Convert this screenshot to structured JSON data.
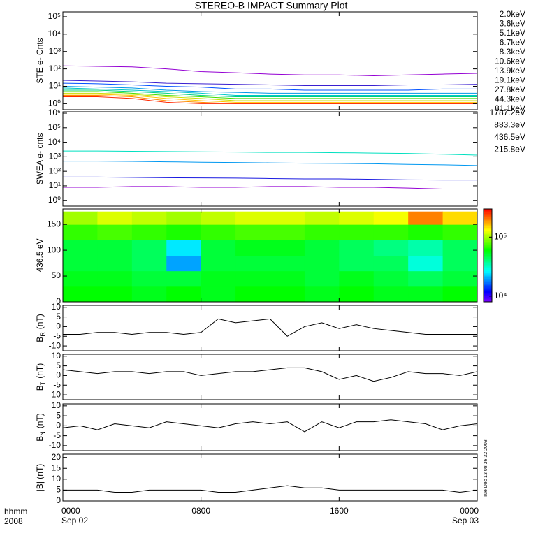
{
  "title": "STEREO-B IMPACT Summary Plot",
  "annotation": "Tue Dec 13 08:36:32 2008",
  "x_axis": {
    "label": "hhmm",
    "year": "2008",
    "xlim": [
      0,
      24
    ],
    "xticks": [
      {
        "value": 0,
        "label": "0000"
      },
      {
        "value": 8,
        "label": "0800"
      },
      {
        "value": 16,
        "label": "1600"
      },
      {
        "value": 24,
        "label": "0000"
      }
    ],
    "dates": [
      {
        "value": 0,
        "label": "Sep 02"
      },
      {
        "value": 24,
        "label": "Sep 03"
      }
    ]
  },
  "chart_data": [
    {
      "type": "line",
      "ylabel": "STE e- Cnts",
      "log_scale": true,
      "ylim": [
        0.45,
        190000
      ],
      "yticks": [
        {
          "value": 1,
          "label": "10⁰"
        },
        {
          "value": 10,
          "label": "10¹"
        },
        {
          "value": 100,
          "label": "10²"
        },
        {
          "value": 1000,
          "label": "10³"
        },
        {
          "value": 10000,
          "label": "10⁴"
        },
        {
          "value": 100000,
          "label": "10⁵"
        }
      ],
      "x": [
        0,
        2,
        4,
        6,
        8,
        10,
        12,
        14,
        16,
        18,
        20,
        22,
        24
      ],
      "series": [
        {
          "name": "2.0keV",
          "color": "#9400d3",
          "values": [
            150,
            140,
            130,
            100,
            70,
            60,
            50,
            45,
            45,
            40,
            45,
            50,
            55
          ]
        },
        {
          "name": "3.6keV",
          "color": "#3a1fd0",
          "values": [
            22,
            20,
            18,
            15,
            14,
            13,
            12,
            11,
            11,
            11,
            12,
            12,
            13
          ]
        },
        {
          "name": "5.1keV",
          "color": "#0050ff",
          "values": [
            15,
            14,
            12,
            10,
            9,
            7,
            7,
            6,
            6,
            6,
            6,
            7,
            7
          ]
        },
        {
          "name": "6.7keV",
          "color": "#0098e8",
          "values": [
            10,
            9,
            8,
            6,
            5,
            4.5,
            4,
            4,
            4,
            4,
            4,
            4,
            4
          ]
        },
        {
          "name": "8.3keV",
          "color": "#00c8c8",
          "values": [
            8,
            7,
            6,
            5,
            4,
            3,
            3,
            3,
            3,
            3,
            3,
            3,
            3
          ]
        },
        {
          "name": "10.6keV",
          "color": "#00d080",
          "values": [
            6,
            6,
            5,
            4,
            3,
            2.5,
            2.5,
            2.5,
            2.5,
            2.5,
            2.5,
            2.5,
            2.5
          ]
        },
        {
          "name": "13.9keV",
          "color": "#40e000",
          "values": [
            5,
            5,
            4,
            3,
            2.5,
            2,
            2,
            2,
            2,
            2,
            2,
            2,
            2
          ]
        },
        {
          "name": "19.1keV",
          "color": "#c8e000",
          "values": [
            4,
            4,
            3.5,
            2.5,
            2,
            1.5,
            1.5,
            1.5,
            1.5,
            1.5,
            1.5,
            1.5,
            1.5
          ]
        },
        {
          "name": "27.8keV",
          "color": "#ffc800",
          "values": [
            3.5,
            3.5,
            3,
            2,
            1.5,
            1.2,
            1.2,
            1.2,
            1.2,
            1.2,
            1.2,
            1.2,
            1.2
          ]
        },
        {
          "name": "44.3keV",
          "color": "#ff8c00",
          "values": [
            3,
            3,
            2.5,
            1.5,
            1.2,
            1,
            1,
            1,
            1,
            1,
            1,
            1,
            1
          ]
        },
        {
          "name": "81.1keV",
          "color": "#ff2800",
          "values": [
            2.5,
            2.5,
            2,
            1.2,
            1,
            1,
            1,
            1,
            1,
            1,
            1,
            1,
            1
          ]
        }
      ]
    },
    {
      "type": "line",
      "ylabel": "SWEA e- cnts",
      "log_scale": true,
      "ylim": [
        0.4,
        1250000
      ],
      "yticks": [
        {
          "value": 1,
          "label": "10⁰"
        },
        {
          "value": 10,
          "label": "10¹"
        },
        {
          "value": 100,
          "label": "10²"
        },
        {
          "value": 1000,
          "label": "10³"
        },
        {
          "value": 10000,
          "label": "10⁴"
        },
        {
          "value": 100000,
          "label": "10⁵"
        },
        {
          "value": 1000000,
          "label": "10⁶"
        }
      ],
      "x": [
        0,
        2,
        4,
        6,
        8,
        10,
        12,
        14,
        16,
        18,
        20,
        22,
        24
      ],
      "series": [
        {
          "name": "1787.2eV",
          "color": "#9400d3",
          "values": [
            8,
            8,
            9,
            9,
            8,
            8,
            9,
            9,
            8,
            8,
            7,
            6,
            6
          ]
        },
        {
          "name": "883.3eV",
          "color": "#1a1ae0",
          "values": [
            40,
            40,
            38,
            36,
            35,
            34,
            32,
            30,
            30,
            28,
            26,
            25,
            25
          ]
        },
        {
          "name": "436.5eV",
          "color": "#0098f0",
          "values": [
            500,
            500,
            480,
            450,
            420,
            400,
            380,
            360,
            350,
            330,
            300,
            280,
            250
          ]
        },
        {
          "name": "215.8eV",
          "color": "#00e0c0",
          "values": [
            2500,
            2500,
            2400,
            2300,
            2200,
            2100,
            2000,
            2000,
            1900,
            1800,
            1700,
            1500,
            1300
          ]
        }
      ]
    },
    {
      "type": "heatmap",
      "ylabel": "436.5 eV",
      "ylim": [
        0,
        180
      ],
      "yticks": [
        0,
        50,
        100,
        150
      ],
      "colormap": "rainbow",
      "zlog": true,
      "zlim": [
        8000,
        300000
      ],
      "zticks": [
        {
          "value": 10000,
          "label": "10⁴"
        },
        {
          "value": 100000,
          "label": "10⁵"
        }
      ],
      "x_bins": [
        0,
        2,
        4,
        6,
        8,
        10,
        12,
        14,
        16,
        18,
        20,
        22,
        24
      ],
      "y_bins": [
        0,
        30,
        60,
        90,
        120,
        150,
        175
      ],
      "z": [
        [
          60000,
          60000,
          55000,
          60000,
          55000,
          60000,
          60000,
          55000,
          60000,
          55000,
          55000,
          60000
        ],
        [
          55000,
          55000,
          50000,
          50000,
          55000,
          55000,
          55000,
          50000,
          55000,
          50000,
          45000,
          50000
        ],
        [
          50000,
          50000,
          45000,
          20000,
          50000,
          50000,
          50000,
          50000,
          45000,
          45000,
          30000,
          45000
        ],
        [
          50000,
          50000,
          45000,
          25000,
          50000,
          55000,
          55000,
          50000,
          45000,
          40000,
          35000,
          45000
        ],
        [
          70000,
          75000,
          70000,
          65000,
          70000,
          75000,
          75000,
          70000,
          70000,
          70000,
          65000,
          70000
        ],
        [
          100000,
          120000,
          110000,
          100000,
          110000,
          120000,
          120000,
          110000,
          120000,
          130000,
          200000,
          150000
        ]
      ]
    },
    {
      "type": "line",
      "ylabel": "B",
      "ylabel_sub": "R",
      "ylabel_unit": "(nT)",
      "ylim": [
        -12.5,
        11
      ],
      "yticks": [
        -10,
        -5,
        0,
        5,
        10
      ],
      "x": [
        0,
        1,
        2,
        3,
        4,
        5,
        6,
        7,
        8,
        9,
        10,
        11,
        12,
        13,
        14,
        15,
        16,
        17,
        18,
        19,
        20,
        21,
        22,
        23,
        24
      ],
      "series": [
        {
          "name": "BR",
          "color": "#000000",
          "values": [
            -4,
            -4,
            -3,
            -3,
            -4,
            -3,
            -3,
            -4,
            -3,
            4,
            2,
            3,
            4,
            -5,
            0,
            2,
            -1,
            1,
            -1,
            -2,
            -3,
            -4,
            -4,
            -4,
            -4
          ]
        }
      ]
    },
    {
      "type": "line",
      "ylabel": "B",
      "ylabel_sub": "T",
      "ylabel_unit": "(nT)",
      "ylim": [
        -12.5,
        11
      ],
      "yticks": [
        -10,
        -5,
        0,
        5,
        10
      ],
      "x": [
        0,
        1,
        2,
        3,
        4,
        5,
        6,
        7,
        8,
        9,
        10,
        11,
        12,
        13,
        14,
        15,
        16,
        17,
        18,
        19,
        20,
        21,
        22,
        23,
        24
      ],
      "series": [
        {
          "name": "BT",
          "color": "#000000",
          "values": [
            3,
            2,
            1,
            2,
            2,
            1,
            2,
            2,
            0,
            1,
            2,
            2,
            3,
            4,
            4,
            2,
            -2,
            0,
            -3,
            -1,
            2,
            1,
            1,
            0,
            2
          ]
        }
      ]
    },
    {
      "type": "line",
      "ylabel": "B",
      "ylabel_sub": "N",
      "ylabel_unit": "(nT)",
      "ylim": [
        -12.5,
        11
      ],
      "yticks": [
        -10,
        -5,
        0,
        5,
        10
      ],
      "x": [
        0,
        1,
        2,
        3,
        4,
        5,
        6,
        7,
        8,
        9,
        10,
        11,
        12,
        13,
        14,
        15,
        16,
        17,
        18,
        19,
        20,
        21,
        22,
        23,
        24
      ],
      "series": [
        {
          "name": "BN",
          "color": "#000000",
          "values": [
            -1,
            0,
            -2,
            1,
            0,
            -1,
            2,
            1,
            0,
            -1,
            1,
            2,
            1,
            2,
            -3,
            2,
            -1,
            2,
            2,
            3,
            2,
            1,
            -2,
            0,
            1
          ]
        }
      ]
    },
    {
      "type": "line",
      "ylabel": "|B| (nT)",
      "ylim": [
        0,
        21.5
      ],
      "yticks": [
        0,
        5,
        10,
        15,
        20
      ],
      "x": [
        0,
        1,
        2,
        3,
        4,
        5,
        6,
        7,
        8,
        9,
        10,
        11,
        12,
        13,
        14,
        15,
        16,
        17,
        18,
        19,
        20,
        21,
        22,
        23,
        24
      ],
      "series": [
        {
          "name": "|B|",
          "color": "#000000",
          "values": [
            5,
            5,
            5,
            4,
            4,
            5,
            5,
            5,
            5,
            4,
            4,
            5,
            6,
            7,
            6,
            6,
            5,
            5,
            5,
            5,
            5,
            5,
            5,
            4,
            5
          ]
        }
      ]
    }
  ]
}
